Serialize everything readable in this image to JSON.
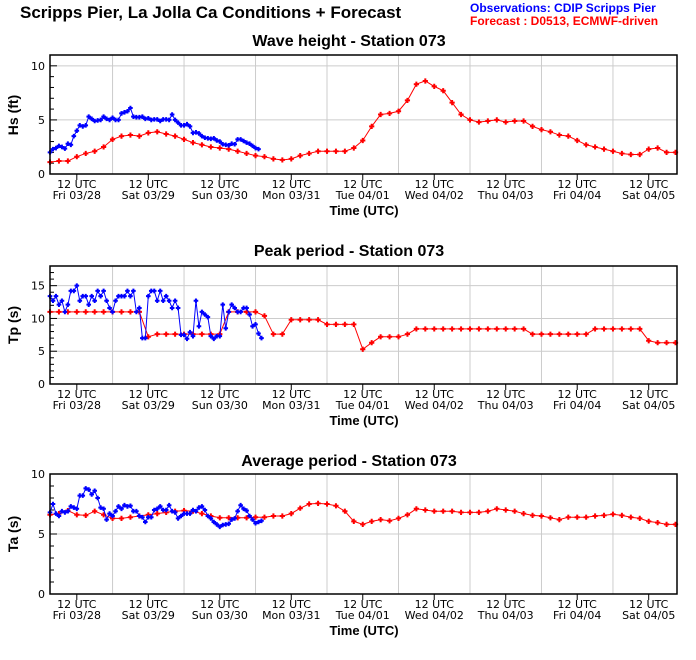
{
  "header": {
    "title": "Scripps Pier, La Jolla Ca Conditions + Forecast",
    "legend_observations": "Observations: CDIP Scripps Pier",
    "legend_forecast": "Forecast : D0513, ECMWF-driven"
  },
  "colors": {
    "observations": "#0000ff",
    "forecast": "#ff0000",
    "grid": "#cccccc"
  },
  "chart_data": [
    {
      "type": "line",
      "title": "Wave height - Station 073",
      "ylabel": "Hs (ft)",
      "xlabel": "Time (UTC)",
      "ylim": [
        0,
        11
      ],
      "yticks": [
        0,
        5,
        10
      ],
      "grid": true,
      "xlim": [
        "03/28 03:00",
        "04/05 21:30"
      ],
      "xticks": [
        {
          "time": "03/28 12:00",
          "line1": "12 UTC",
          "line2": "Fri 03/28"
        },
        {
          "time": "03/29 12:00",
          "line1": "12 UTC",
          "line2": "Sat 03/29"
        },
        {
          "time": "03/30 12:00",
          "line1": "12 UTC",
          "line2": "Sun 03/30"
        },
        {
          "time": "03/31 12:00",
          "line1": "12 UTC",
          "line2": "Mon 03/31"
        },
        {
          "time": "04/01 12:00",
          "line1": "12 UTC",
          "line2": "Tue 04/01"
        },
        {
          "time": "04/02 12:00",
          "line1": "12 UTC",
          "line2": "Wed 04/02"
        },
        {
          "time": "04/03 12:00",
          "line1": "12 UTC",
          "line2": "Thu 04/03"
        },
        {
          "time": "04/04 12:00",
          "line1": "12 UTC",
          "line2": "Fri 04/04"
        },
        {
          "time": "04/05 12:00",
          "line1": "12 UTC",
          "line2": "Sat 04/05"
        }
      ],
      "series": [
        {
          "name": "Observations",
          "color": "#0000ff",
          "start": "03/28 03:00",
          "step_hours": 1,
          "values": [
            2.0,
            2.3,
            2.4,
            2.6,
            2.5,
            2.35,
            2.8,
            2.7,
            3.5,
            4.0,
            4.5,
            4.4,
            4.5,
            5.3,
            5.1,
            4.9,
            4.95,
            5.0,
            5.3,
            5.1,
            5.0,
            5.2,
            5.0,
            5.0,
            5.6,
            5.7,
            5.8,
            6.1,
            5.3,
            5.25,
            5.25,
            5.3,
            5.1,
            5.15,
            5.0,
            5.05,
            5.05,
            4.9,
            5.05,
            5.05,
            5.0,
            5.5,
            5.0,
            4.75,
            4.5,
            4.5,
            4.6,
            4.4,
            3.8,
            3.85,
            3.75,
            3.5,
            3.35,
            3.3,
            3.25,
            3.3,
            3.1,
            3.0,
            2.75,
            2.7,
            2.65,
            2.8,
            2.75,
            3.2,
            3.2,
            3.05,
            2.9,
            2.8,
            2.6,
            2.4,
            2.3
          ]
        },
        {
          "name": "Forecast",
          "color": "#ff0000",
          "start": "03/28 03:00",
          "step_hours": 3,
          "values": [
            1.1,
            1.2,
            1.2,
            1.6,
            1.9,
            2.1,
            2.5,
            3.2,
            3.5,
            3.6,
            3.5,
            3.8,
            3.9,
            3.7,
            3.5,
            3.2,
            2.9,
            2.7,
            2.5,
            2.4,
            2.3,
            2.1,
            1.9,
            1.7,
            1.6,
            1.4,
            1.3,
            1.4,
            1.7,
            1.9,
            2.1,
            2.1,
            2.1,
            2.1,
            2.4,
            3.1,
            4.4,
            5.5,
            5.6,
            5.8,
            6.8,
            8.3,
            8.6,
            8.1,
            7.7,
            6.6,
            5.5,
            5.0,
            4.8,
            4.9,
            5.0,
            4.8,
            4.9,
            4.9,
            4.4,
            4.1,
            3.9,
            3.6,
            3.5,
            3.1,
            2.7,
            2.5,
            2.3,
            2.1,
            1.9,
            1.8,
            1.8,
            2.3,
            2.4,
            2.0,
            2.0
          ]
        }
      ]
    },
    {
      "type": "line",
      "title": "Peak period - Station 073",
      "ylabel": "Tp (s)",
      "xlabel": "Time (UTC)",
      "ylim": [
        0,
        18
      ],
      "yticks": [
        0,
        5,
        10,
        15
      ],
      "grid": true,
      "xlim": [
        "03/28 03:00",
        "04/05 21:30"
      ],
      "xticks": [
        {
          "time": "03/28 12:00",
          "line1": "12 UTC",
          "line2": "Fri 03/28"
        },
        {
          "time": "03/29 12:00",
          "line1": "12 UTC",
          "line2": "Sat 03/29"
        },
        {
          "time": "03/30 12:00",
          "line1": "12 UTC",
          "line2": "Sun 03/30"
        },
        {
          "time": "03/31 12:00",
          "line1": "12 UTC",
          "line2": "Mon 03/31"
        },
        {
          "time": "04/01 12:00",
          "line1": "12 UTC",
          "line2": "Tue 04/01"
        },
        {
          "time": "04/02 12:00",
          "line1": "12 UTC",
          "line2": "Wed 04/02"
        },
        {
          "time": "04/03 12:00",
          "line1": "12 UTC",
          "line2": "Thu 04/03"
        },
        {
          "time": "04/04 12:00",
          "line1": "12 UTC",
          "line2": "Fri 04/04"
        },
        {
          "time": "04/05 12:00",
          "line1": "12 UTC",
          "line2": "Sat 04/05"
        }
      ],
      "series": [
        {
          "name": "Observations",
          "color": "#0000ff",
          "start": "03/28 03:00",
          "step_hours": 1,
          "values": [
            13.4,
            12.7,
            13.4,
            12.1,
            12.7,
            11.0,
            12.1,
            14.2,
            14.2,
            15.0,
            12.7,
            13.4,
            13.4,
            12.1,
            13.4,
            12.7,
            14.2,
            13.4,
            14.2,
            12.7,
            11.6,
            11.0,
            12.7,
            13.4,
            13.4,
            13.4,
            14.2,
            13.4,
            14.2,
            11.0,
            11.6,
            7.0,
            7.0,
            13.4,
            14.2,
            14.2,
            12.7,
            14.2,
            12.7,
            13.4,
            12.7,
            11.6,
            12.7,
            11.6,
            7.5,
            7.5,
            6.9,
            7.9,
            7.3,
            12.7,
            8.8,
            11.0,
            10.6,
            10.2,
            7.3,
            6.9,
            7.3,
            7.3,
            12.1,
            8.5,
            11.0,
            12.1,
            11.6,
            11.0,
            11.0,
            11.6,
            11.6,
            10.6,
            8.8,
            9.1,
            7.7,
            7.0
          ]
        },
        {
          "name": "Forecast",
          "color": "#ff0000",
          "start": "03/28 03:00",
          "step_hours": 3,
          "values": [
            11,
            11,
            11,
            11,
            11,
            11,
            11,
            11,
            11,
            11,
            11,
            7.2,
            7.6,
            7.6,
            7.6,
            7.6,
            7.6,
            7.6,
            7.6,
            7.6,
            11,
            11,
            11,
            11,
            10.4,
            7.6,
            7.6,
            9.8,
            9.8,
            9.8,
            9.8,
            9.1,
            9.1,
            9.1,
            9.1,
            5.3,
            6.3,
            7.2,
            7.2,
            7.2,
            7.6,
            8.4,
            8.4,
            8.4,
            8.4,
            8.4,
            8.4,
            8.4,
            8.4,
            8.4,
            8.4,
            8.4,
            8.4,
            8.4,
            7.6,
            7.6,
            7.6,
            7.6,
            7.6,
            7.6,
            7.6,
            8.4,
            8.4,
            8.4,
            8.4,
            8.4,
            8.4,
            6.6,
            6.3,
            6.3,
            6.3
          ]
        }
      ]
    },
    {
      "type": "line",
      "title": "Average period - Station 073",
      "ylabel": "Ta (s)",
      "xlabel": "Time (UTC)",
      "ylim": [
        0,
        10
      ],
      "yticks": [
        0,
        5,
        10
      ],
      "grid": true,
      "xlim": [
        "03/28 03:00",
        "04/05 21:30"
      ],
      "xticks": [
        {
          "time": "03/28 12:00",
          "line1": "12 UTC",
          "line2": "Fri 03/28"
        },
        {
          "time": "03/29 12:00",
          "line1": "12 UTC",
          "line2": "Sat 03/29"
        },
        {
          "time": "03/30 12:00",
          "line1": "12 UTC",
          "line2": "Sun 03/30"
        },
        {
          "time": "03/31 12:00",
          "line1": "12 UTC",
          "line2": "Mon 03/31"
        },
        {
          "time": "04/01 12:00",
          "line1": "12 UTC",
          "line2": "Tue 04/01"
        },
        {
          "time": "04/02 12:00",
          "line1": "12 UTC",
          "line2": "Wed 04/02"
        },
        {
          "time": "04/03 12:00",
          "line1": "12 UTC",
          "line2": "Thu 04/03"
        },
        {
          "time": "04/04 12:00",
          "line1": "12 UTC",
          "line2": "Fri 04/04"
        },
        {
          "time": "04/05 12:00",
          "line1": "12 UTC",
          "line2": "Sat 04/05"
        }
      ],
      "series": [
        {
          "name": "Observations",
          "color": "#0000ff",
          "start": "03/28 03:00",
          "step_hours": 1,
          "values": [
            6.8,
            7.5,
            6.7,
            6.5,
            6.9,
            6.8,
            6.9,
            7.3,
            7.2,
            7.1,
            8.2,
            8.2,
            8.8,
            8.7,
            8.3,
            8.6,
            8.0,
            7.2,
            7.1,
            6.2,
            6.7,
            6.5,
            6.9,
            7.3,
            7.1,
            7.4,
            7.3,
            7.35,
            6.9,
            6.9,
            6.5,
            6.4,
            6.0,
            6.4,
            6.4,
            7.0,
            7.1,
            7.3,
            7.0,
            7.0,
            7.4,
            6.9,
            6.8,
            6.3,
            6.5,
            6.7,
            6.7,
            6.7,
            7.0,
            6.9,
            7.2,
            7.3,
            7.0,
            6.5,
            6.3,
            6.0,
            5.8,
            5.6,
            5.75,
            5.8,
            5.85,
            6.2,
            6.3,
            6.9,
            7.4,
            7.1,
            6.95,
            6.5,
            6.2,
            5.9,
            6.0,
            6.1
          ]
        },
        {
          "name": "Forecast",
          "color": "#ff0000",
          "start": "03/28 03:00",
          "step_hours": 3,
          "values": [
            6.6,
            6.7,
            6.95,
            6.6,
            6.55,
            6.9,
            6.6,
            6.3,
            6.3,
            6.4,
            6.5,
            6.6,
            6.7,
            6.8,
            6.9,
            6.95,
            6.9,
            6.7,
            6.5,
            6.35,
            6.35,
            6.35,
            6.35,
            6.4,
            6.4,
            6.5,
            6.5,
            6.7,
            7.15,
            7.5,
            7.55,
            7.5,
            7.35,
            6.9,
            6.05,
            5.8,
            6.05,
            6.2,
            6.1,
            6.3,
            6.6,
            7.1,
            7.0,
            6.9,
            6.9,
            6.9,
            6.8,
            6.8,
            6.8,
            6.9,
            7.1,
            7.0,
            6.9,
            6.7,
            6.55,
            6.5,
            6.35,
            6.2,
            6.4,
            6.4,
            6.4,
            6.5,
            6.55,
            6.65,
            6.55,
            6.4,
            6.3,
            6.05,
            5.95,
            5.8,
            5.8
          ]
        }
      ]
    }
  ]
}
